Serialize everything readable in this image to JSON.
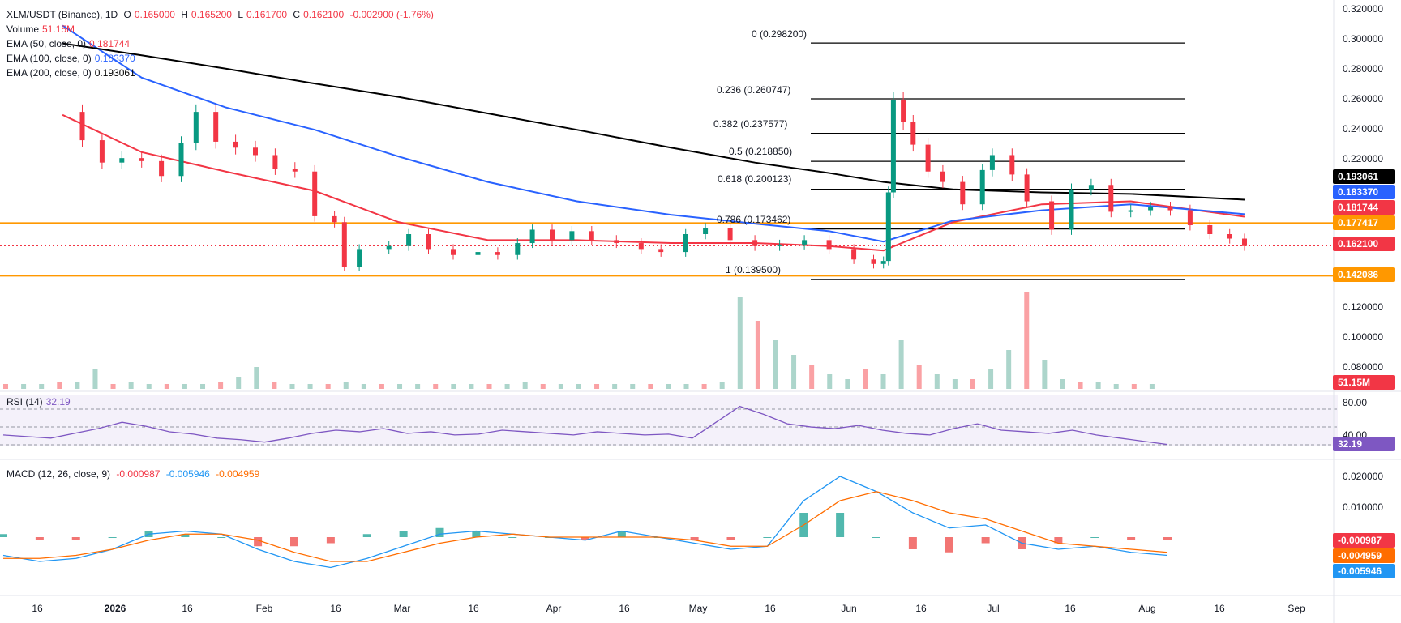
{
  "header": {
    "symbol": "XLM/USDT (Binance), 1D",
    "o_label": "O",
    "o_val": "0.165000",
    "h_label": "H",
    "h_val": "0.165200",
    "l_label": "L",
    "l_val": "0.161700",
    "c_label": "C",
    "c_val": "0.162100",
    "change": "-0.002900 (-1.76%)",
    "volume_label": "Volume",
    "volume_val": "51.15M",
    "ema50_label": "EMA (50, close, 0)",
    "ema50_val": "0.181744",
    "ema100_label": "EMA (100, close, 0)",
    "ema100_val": "0.183370",
    "ema200_label": "EMA (200, close, 0)",
    "ema200_val": "0.193061",
    "rsi_label": "RSI (14)",
    "rsi_val": "32.19",
    "macd_label": "MACD (12, 26, close, 9)",
    "macd_val1": "-0.000987",
    "macd_val2": "-0.005946",
    "macd_val3": "-0.004959"
  },
  "colors": {
    "up": "#089981",
    "down": "#f23645",
    "ema50": "#f23645",
    "ema100": "#2962ff",
    "ema200": "#000000",
    "orange": "#ff9800",
    "rsi": "#7e57c2",
    "macd": "#2196f3",
    "signal": "#ff6d00"
  },
  "price_axis": [
    "0.320000",
    "0.300000",
    "0.280000",
    "0.260000",
    "0.240000",
    "0.220000",
    "0.120000",
    "0.100000",
    "0.080000"
  ],
  "rsi_axis": [
    "80.00",
    "40.00"
  ],
  "macd_axis": [
    "0.020000",
    "0.010000"
  ],
  "time_axis": [
    "16",
    "2026",
    "16",
    "Feb",
    "16",
    "Mar",
    "16",
    "Apr",
    "16",
    "May",
    "16",
    "Jun",
    "16",
    "Jul",
    "16",
    "Aug",
    "16",
    "Sep"
  ],
  "fib_levels": [
    {
      "label": "0 (0.298200)"
    },
    {
      "label": "0.236 (0.260747)"
    },
    {
      "label": "0.382 (0.237577)"
    },
    {
      "label": "0.5 (0.218850)"
    },
    {
      "label": "0.618 (0.200123)"
    },
    {
      "label": "0.786 (0.173462)"
    },
    {
      "label": "1 (0.139500)"
    }
  ],
  "price_tags": [
    {
      "text": "0.193061",
      "color": "#000000"
    },
    {
      "text": "0.183370",
      "color": "#2962ff"
    },
    {
      "text": "0.181744",
      "color": "#f23645"
    },
    {
      "text": "0.177417",
      "color": "#ff9800"
    },
    {
      "text": "0.162100",
      "color": "#f23645"
    },
    {
      "text": "0.142086",
      "color": "#ff9800"
    },
    {
      "text": "51.15M",
      "color": "#f23645"
    },
    {
      "text": "32.19",
      "color": "#7e57c2"
    },
    {
      "text": "-0.000987",
      "color": "#f23645"
    },
    {
      "text": "-0.004959",
      "color": "#ff6d00"
    },
    {
      "text": "-0.005946",
      "color": "#2196f3"
    }
  ],
  "chart_data": {
    "type": "line",
    "title": "XLM/USDT (Binance), 1D",
    "ylim": [
      0.13,
      0.32
    ],
    "horizontal_levels": [
      0.177417,
      0.142086
    ],
    "close_series": [
      {
        "date": "2025-12-12",
        "close": 0.252
      },
      {
        "date": "2025-12-16",
        "close": 0.233
      },
      {
        "date": "2025-12-20",
        "close": 0.218
      },
      {
        "date": "2025-12-24",
        "close": 0.221
      },
      {
        "date": "2025-12-28",
        "close": 0.219
      },
      {
        "date": "2026-01-01",
        "close": 0.209
      },
      {
        "date": "2026-01-05",
        "close": 0.231
      },
      {
        "date": "2026-01-08",
        "close": 0.252
      },
      {
        "date": "2026-01-12",
        "close": 0.232
      },
      {
        "date": "2026-01-16",
        "close": 0.228
      },
      {
        "date": "2026-01-20",
        "close": 0.223
      },
      {
        "date": "2026-01-24",
        "close": 0.214
      },
      {
        "date": "2026-01-28",
        "close": 0.212
      },
      {
        "date": "2026-02-01",
        "close": 0.182
      },
      {
        "date": "2026-02-05",
        "close": 0.178
      },
      {
        "date": "2026-02-07",
        "close": 0.148
      },
      {
        "date": "2026-02-10",
        "close": 0.16
      },
      {
        "date": "2026-02-16",
        "close": 0.162
      },
      {
        "date": "2026-02-20",
        "close": 0.17
      },
      {
        "date": "2026-02-24",
        "close": 0.16
      },
      {
        "date": "2026-03-01",
        "close": 0.156
      },
      {
        "date": "2026-03-06",
        "close": 0.158
      },
      {
        "date": "2026-03-10",
        "close": 0.156
      },
      {
        "date": "2026-03-14",
        "close": 0.164
      },
      {
        "date": "2026-03-17",
        "close": 0.173
      },
      {
        "date": "2026-03-21",
        "close": 0.166
      },
      {
        "date": "2026-03-25",
        "close": 0.172
      },
      {
        "date": "2026-03-29",
        "close": 0.166
      },
      {
        "date": "2026-04-03",
        "close": 0.164
      },
      {
        "date": "2026-04-08",
        "close": 0.16
      },
      {
        "date": "2026-04-12",
        "close": 0.158
      },
      {
        "date": "2026-04-17",
        "close": 0.17
      },
      {
        "date": "2026-04-21",
        "close": 0.174
      },
      {
        "date": "2026-04-26",
        "close": 0.166
      },
      {
        "date": "2026-05-01",
        "close": 0.162
      },
      {
        "date": "2026-05-06",
        "close": 0.163
      },
      {
        "date": "2026-05-11",
        "close": 0.166
      },
      {
        "date": "2026-05-16",
        "close": 0.16
      },
      {
        "date": "2026-05-21",
        "close": 0.153
      },
      {
        "date": "2026-05-25",
        "close": 0.15
      },
      {
        "date": "2026-05-27",
        "close": 0.152
      },
      {
        "date": "2026-05-28",
        "close": 0.198
      },
      {
        "date": "2026-05-29",
        "close": 0.26
      },
      {
        "date": "2026-05-31",
        "close": 0.245
      },
      {
        "date": "2026-06-02",
        "close": 0.23
      },
      {
        "date": "2026-06-05",
        "close": 0.212
      },
      {
        "date": "2026-06-08",
        "close": 0.205
      },
      {
        "date": "2026-06-12",
        "close": 0.19
      },
      {
        "date": "2026-06-16",
        "close": 0.213
      },
      {
        "date": "2026-06-18",
        "close": 0.223
      },
      {
        "date": "2026-06-22",
        "close": 0.21
      },
      {
        "date": "2026-06-25",
        "close": 0.192
      },
      {
        "date": "2026-06-30",
        "close": 0.173
      },
      {
        "date": "2026-07-04",
        "close": 0.2
      },
      {
        "date": "2026-07-08",
        "close": 0.203
      },
      {
        "date": "2026-07-12",
        "close": 0.185
      },
      {
        "date": "2026-07-16",
        "close": 0.186
      },
      {
        "date": "2026-07-20",
        "close": 0.188
      },
      {
        "date": "2026-07-24",
        "close": 0.186
      },
      {
        "date": "2026-07-28",
        "close": 0.176
      },
      {
        "date": "2026-08-01",
        "close": 0.17
      },
      {
        "date": "2026-08-05",
        "close": 0.167
      },
      {
        "date": "2026-08-08",
        "close": 0.162
      }
    ],
    "ema_series": [
      {
        "name": "EMA (50, close, 0)",
        "values": [
          0.25,
          0.225,
          0.212,
          0.199,
          0.178,
          0.166,
          0.166,
          0.164,
          0.164,
          0.162,
          0.159,
          0.178,
          0.19,
          0.192,
          0.1817
        ]
      },
      {
        "name": "EMA (100, close, 0)",
        "values": [
          0.31,
          0.275,
          0.255,
          0.24,
          0.222,
          0.205,
          0.192,
          0.183,
          0.177,
          0.172,
          0.165,
          0.179,
          0.186,
          0.19,
          0.1834
        ]
      },
      {
        "name": "EMA (200, close, 0)",
        "values": [
          0.298,
          0.29,
          0.281,
          0.271,
          0.262,
          0.251,
          0.24,
          0.228,
          0.218,
          0.211,
          0.205,
          0.2,
          0.198,
          0.197,
          0.1931
        ]
      }
    ],
    "ema_dates": [
      "2025-12-12",
      "2025-12-28",
      "2026-01-14",
      "2026-02-01",
      "2026-02-18",
      "2026-03-08",
      "2026-03-26",
      "2026-04-14",
      "2026-05-01",
      "2026-05-16",
      "2026-05-27",
      "2026-06-10",
      "2026-06-28",
      "2026-07-16",
      "2026-08-08"
    ],
    "volume": [
      2,
      2,
      2,
      3,
      3,
      8,
      2,
      3,
      2,
      2,
      2,
      2,
      3,
      5,
      9,
      3,
      2,
      2,
      2,
      3,
      2,
      2,
      2,
      2,
      2,
      2,
      2,
      2,
      2,
      3,
      2,
      2,
      2,
      2,
      2,
      2,
      2,
      2,
      2,
      2,
      3,
      38,
      28,
      20,
      14,
      10,
      6,
      4,
      8,
      6,
      20,
      10,
      6,
      4,
      4,
      8,
      16,
      40,
      12,
      4,
      3,
      3,
      2,
      2,
      2
    ],
    "rsi": [
      44,
      42,
      40,
      46,
      52,
      60,
      55,
      48,
      45,
      40,
      38,
      35,
      40,
      46,
      50,
      48,
      52,
      46,
      48,
      44,
      45,
      50,
      48,
      46,
      44,
      48,
      46,
      44,
      45,
      40,
      60,
      80,
      70,
      58,
      54,
      52,
      56,
      50,
      46,
      44,
      52,
      58,
      50,
      48,
      46,
      50,
      44,
      40,
      36,
      32
    ],
    "macd": [
      -0.006,
      -0.008,
      -0.007,
      -0.004,
      0.001,
      0.002,
      0.001,
      -0.004,
      -0.008,
      -0.01,
      -0.007,
      -0.003,
      0.001,
      0.002,
      0.001,
      0.0,
      -0.001,
      0.002,
      0.0,
      -0.002,
      -0.004,
      -0.003,
      0.012,
      0.02,
      0.015,
      0.008,
      0.003,
      0.004,
      -0.002,
      -0.004,
      -0.003,
      -0.005,
      -0.006
    ],
    "macd_signal": [
      -0.007,
      -0.007,
      -0.006,
      -0.004,
      -0.001,
      0.001,
      0.001,
      -0.001,
      -0.005,
      -0.008,
      -0.008,
      -0.005,
      -0.002,
      0.0,
      0.001,
      0.0,
      -0.0,
      0.0,
      0.0,
      -0.001,
      -0.003,
      -0.003,
      0.004,
      0.012,
      0.015,
      0.012,
      0.008,
      0.006,
      0.002,
      -0.002,
      -0.003,
      -0.004,
      -0.005
    ]
  }
}
